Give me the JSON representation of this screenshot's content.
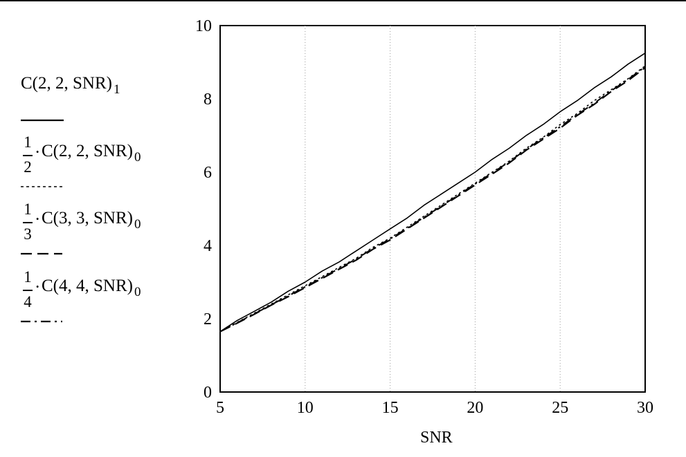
{
  "chart_data": {
    "type": "line",
    "xlabel": "SNR",
    "ylabel": "",
    "xlim": [
      5,
      30
    ],
    "ylim": [
      0,
      10
    ],
    "xticks": [
      "5",
      "10",
      "15",
      "20",
      "25",
      "30"
    ],
    "yticks": [
      "0",
      "2",
      "4",
      "6",
      "8",
      "10"
    ],
    "grid": "dotted vertical lines at x = 10, 15, 20, 25",
    "legend_placement": "left, outside plot",
    "x": [
      5,
      6,
      7,
      8,
      9,
      10,
      11,
      12,
      13,
      14,
      15,
      16,
      17,
      18,
      19,
      20,
      21,
      22,
      23,
      24,
      25,
      26,
      27,
      28,
      29,
      30
    ],
    "series": [
      {
        "legend_label": "C(2, 2, SNR)",
        "legend_subscript": "1",
        "legend_coeff": "",
        "style": "solid",
        "values": [
          1.65,
          1.95,
          2.2,
          2.45,
          2.75,
          3.0,
          3.3,
          3.55,
          3.85,
          4.15,
          4.45,
          4.75,
          5.1,
          5.4,
          5.7,
          6.0,
          6.35,
          6.65,
          7.0,
          7.3,
          7.65,
          7.95,
          8.3,
          8.6,
          8.95,
          9.25
        ]
      },
      {
        "legend_label": "C(2, 2, SNR)",
        "legend_subscript": "0",
        "legend_coeff": "1/2",
        "style": "dotted",
        "values": [
          1.65,
          1.9,
          2.15,
          2.4,
          2.65,
          2.9,
          3.15,
          3.4,
          3.65,
          3.95,
          4.2,
          4.5,
          4.8,
          5.1,
          5.4,
          5.7,
          6.0,
          6.3,
          6.65,
          6.95,
          7.3,
          7.6,
          7.95,
          8.25,
          8.55,
          8.9
        ]
      },
      {
        "legend_label": "C(3, 3, SNR)",
        "legend_subscript": "0",
        "legend_coeff": "1/3",
        "style": "long-dash",
        "values": [
          1.65,
          1.88,
          2.12,
          2.37,
          2.6,
          2.85,
          3.1,
          3.35,
          3.6,
          3.9,
          4.15,
          4.45,
          4.75,
          5.05,
          5.35,
          5.65,
          5.95,
          6.25,
          6.6,
          6.9,
          7.2,
          7.55,
          7.85,
          8.2,
          8.5,
          8.85
        ]
      },
      {
        "legend_label": "C(4, 4, SNR)",
        "legend_subscript": "0",
        "legend_coeff": "1/4",
        "style": "dash-dot",
        "values": [
          1.65,
          1.89,
          2.13,
          2.38,
          2.62,
          2.87,
          3.12,
          3.37,
          3.63,
          3.92,
          4.18,
          4.47,
          4.77,
          5.07,
          5.37,
          5.68,
          5.98,
          6.28,
          6.62,
          6.93,
          7.24,
          7.57,
          7.88,
          8.22,
          8.53,
          8.88
        ]
      }
    ]
  }
}
